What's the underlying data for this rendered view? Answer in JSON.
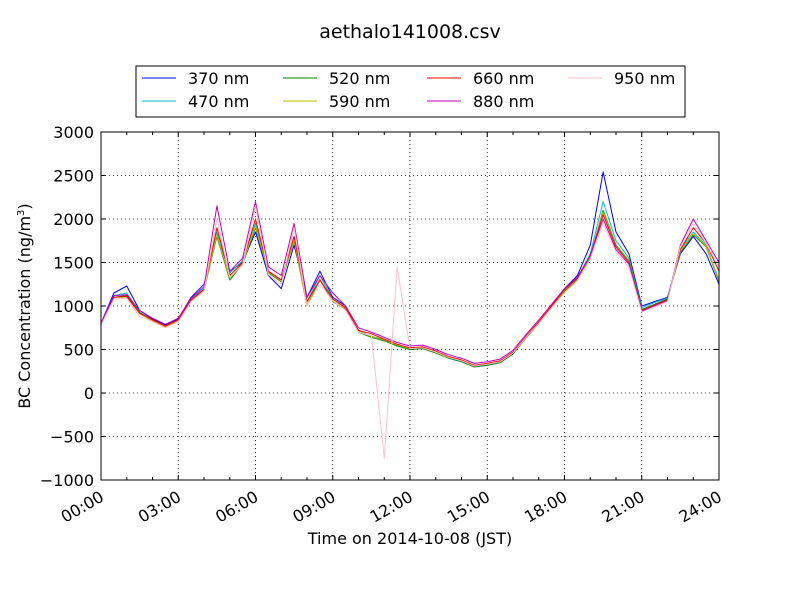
{
  "chart_data": {
    "type": "line",
    "title": "aethalo141008.csv",
    "xlabel": "Time on 2014-10-08 (JST)",
    "ylabel": "BC Concentration (ng/m³)",
    "ylabel_parts": {
      "prefix": "BC Concentration (ng/m",
      "superscript": "3",
      "suffix": ")"
    },
    "xlim": [
      0,
      24
    ],
    "ylim": [
      -1000,
      3000
    ],
    "x_tick_values": [
      0,
      3,
      6,
      9,
      12,
      15,
      18,
      21,
      24
    ],
    "x_tick_labels": [
      "00:00",
      "03:00",
      "06:00",
      "09:00",
      "12:00",
      "15:00",
      "18:00",
      "21:00",
      "24:00"
    ],
    "y_tick_values": [
      -1000,
      -500,
      0,
      500,
      1000,
      1500,
      2000,
      2500,
      3000
    ],
    "y_tick_labels": [
      "−1000",
      "−500",
      "0",
      "500",
      "1000",
      "1500",
      "2000",
      "2500",
      "3000"
    ],
    "grid": true,
    "legend_position": "top",
    "legend_columns": 4,
    "x": [
      0,
      0.5,
      1,
      1.5,
      2,
      2.5,
      3,
      3.5,
      4,
      4.5,
      5,
      5.5,
      6,
      6.5,
      7,
      7.5,
      8,
      8.5,
      9,
      9.5,
      10,
      10.5,
      11,
      11.5,
      12,
      12.5,
      13,
      13.5,
      14,
      14.5,
      15,
      15.5,
      16,
      16.5,
      17,
      17.5,
      18,
      18.5,
      19,
      19.5,
      20,
      20.5,
      21,
      21.5,
      22,
      22.5,
      23,
      23.5,
      24
    ],
    "series": [
      {
        "name": "370 nm",
        "color": "#0000ff",
        "values": [
          800,
          1150,
          1230,
          950,
          850,
          780,
          850,
          1100,
          1250,
          1800,
          1400,
          1500,
          1850,
          1350,
          1200,
          1700,
          1100,
          1400,
          1100,
          1000,
          700,
          650,
          600,
          550,
          500,
          520,
          480,
          400,
          360,
          300,
          320,
          350,
          450,
          650,
          800,
          1000,
          1200,
          1350,
          1700,
          2540,
          1850,
          1600,
          1000,
          1050,
          1100,
          1600,
          1800,
          1600,
          1250
        ]
      },
      {
        "name": "470 nm",
        "color": "#00bfbf",
        "values": [
          790,
          1120,
          1150,
          930,
          840,
          770,
          840,
          1080,
          1200,
          1850,
          1380,
          1520,
          1950,
          1400,
          1300,
          1800,
          1050,
          1350,
          1080,
          980,
          720,
          650,
          620,
          560,
          510,
          520,
          470,
          410,
          370,
          310,
          330,
          360,
          460,
          640,
          810,
          990,
          1180,
          1320,
          1600,
          2200,
          1750,
          1550,
          980,
          1040,
          1090,
          1650,
          1850,
          1700,
          1300
        ]
      },
      {
        "name": "520 nm",
        "color": "#008000",
        "values": [
          780,
          1100,
          1120,
          920,
          830,
          760,
          830,
          1060,
          1180,
          1800,
          1300,
          1480,
          1900,
          1380,
          1280,
          1750,
          1000,
          1300,
          1050,
          960,
          700,
          640,
          600,
          540,
          500,
          510,
          460,
          400,
          360,
          300,
          320,
          350,
          450,
          630,
          800,
          980,
          1170,
          1300,
          1560,
          2100,
          1700,
          1520,
          960,
          1020,
          1080,
          1620,
          1820,
          1680,
          1280
        ]
      },
      {
        "name": "590 nm",
        "color": "#bfbf00",
        "values": [
          780,
          1100,
          1100,
          910,
          830,
          760,
          830,
          1060,
          1180,
          1820,
          1320,
          1490,
          1920,
          1390,
          1290,
          1760,
          1010,
          1310,
          1060,
          970,
          710,
          650,
          610,
          550,
          510,
          520,
          470,
          410,
          370,
          310,
          330,
          360,
          460,
          640,
          810,
          990,
          1180,
          1310,
          1570,
          2080,
          1690,
          1510,
          950,
          1010,
          1070,
          1630,
          1830,
          1690,
          1290
        ]
      },
      {
        "name": "660 nm",
        "color": "#ff0000",
        "values": [
          790,
          1100,
          1110,
          920,
          840,
          770,
          840,
          1070,
          1190,
          1900,
          1350,
          1500,
          2000,
          1400,
          1300,
          1800,
          1050,
          1300,
          1080,
          980,
          720,
          680,
          620,
          560,
          520,
          530,
          480,
          420,
          380,
          320,
          340,
          370,
          470,
          650,
          820,
          1000,
          1190,
          1320,
          1580,
          2050,
          1680,
          1500,
          950,
          1010,
          1070,
          1650,
          1900,
          1720,
          1400
        ]
      },
      {
        "name": "880 nm",
        "color": "#bf00bf",
        "values": [
          800,
          1120,
          1130,
          950,
          860,
          790,
          860,
          1090,
          1220,
          2150,
          1400,
          1550,
          2200,
          1450,
          1350,
          1950,
          1100,
          1350,
          1150,
          1000,
          750,
          700,
          640,
          580,
          540,
          550,
          500,
          440,
          400,
          340,
          360,
          390,
          490,
          670,
          840,
          1020,
          1200,
          1330,
          1580,
          2000,
          1650,
          1480,
          940,
          1000,
          1060,
          1700,
          2000,
          1750,
          1500
        ]
      },
      {
        "name": "950 nm",
        "color": "#ffc0cb",
        "values": [
          780,
          1080,
          1090,
          880,
          820,
          750,
          820,
          1050,
          1170,
          2000,
          1330,
          1470,
          2150,
          1360,
          1250,
          1900,
          1000,
          1250,
          1060,
          950,
          700,
          660,
          -750,
          1450,
          510,
          520,
          470,
          410,
          370,
          310,
          330,
          360,
          460,
          640,
          800,
          980,
          1150,
          1290,
          1540,
          1950,
          1620,
          1450,
          930,
          990,
          1050,
          1680,
          1950,
          1720,
          1450
        ]
      }
    ]
  }
}
